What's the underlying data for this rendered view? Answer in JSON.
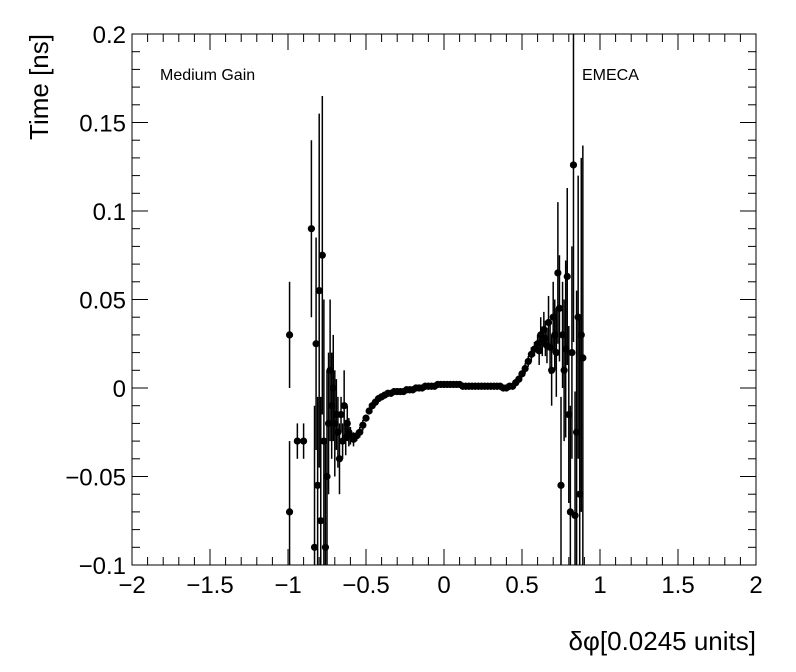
{
  "chart_data": {
    "type": "scatter",
    "xlabel": "δφ[0.0245 units]",
    "ylabel": "Time [ns]",
    "xlim": [
      -2,
      2
    ],
    "ylim": [
      -0.1,
      0.2
    ],
    "xticks": [
      -2,
      -1.5,
      -1,
      -0.5,
      0,
      0.5,
      1,
      1.5,
      2
    ],
    "xtick_labels": [
      "−2",
      "−1.5",
      "−1",
      "−0.5",
      "0",
      "0.5",
      "1",
      "1.5",
      "2"
    ],
    "yticks": [
      -0.1,
      -0.05,
      0,
      0.05,
      0.1,
      0.15,
      0.2
    ],
    "ytick_labels": [
      "−0.1",
      "−0.05",
      "0",
      "0.05",
      "0.1",
      "0.15",
      "0.2"
    ],
    "annotations": [
      "Medium Gain",
      "EMECA"
    ],
    "grid": false,
    "marker_color": "#000000",
    "series": [
      {
        "points": [
          [
            -0.99,
            0.03,
            0.03
          ],
          [
            -0.99,
            -0.07,
            0.04
          ],
          [
            -0.94,
            -0.03,
            0.01
          ],
          [
            -0.9,
            -0.03,
            0.01
          ],
          [
            -0.85,
            0.09,
            0.05
          ],
          [
            -0.83,
            -0.09,
            0.08
          ],
          [
            -0.82,
            0.025,
            0.06
          ],
          [
            -0.81,
            -0.055,
            0.05
          ],
          [
            -0.8,
            0.055,
            0.1
          ],
          [
            -0.79,
            -0.075,
            0.07
          ],
          [
            -0.78,
            0.075,
            0.09
          ],
          [
            -0.77,
            -0.03,
            0.08
          ],
          [
            -0.76,
            -0.09,
            0.06
          ],
          [
            -0.75,
            -0.05,
            0.06
          ],
          [
            -0.74,
            -0.02,
            0.04
          ],
          [
            -0.73,
            0.01,
            0.04
          ],
          [
            -0.72,
            -0.01,
            0.03
          ],
          [
            -0.71,
            0.0,
            0.03
          ],
          [
            -0.7,
            -0.02,
            0.03
          ],
          [
            -0.69,
            -0.015,
            0.02
          ],
          [
            -0.68,
            -0.025,
            0.02
          ],
          [
            -0.67,
            -0.04,
            0.02
          ],
          [
            -0.66,
            -0.015,
            0.01
          ],
          [
            -0.65,
            -0.03,
            0.01
          ],
          [
            -0.64,
            -0.01,
            0.02
          ],
          [
            -0.63,
            -0.028,
            0.01
          ],
          [
            -0.62,
            -0.02,
            0.01
          ],
          [
            -0.61,
            -0.025,
            0.008
          ],
          [
            -0.6,
            -0.027,
            0.005
          ],
          [
            -0.58,
            -0.029,
            0.004
          ],
          [
            -0.56,
            -0.027,
            0.003
          ],
          [
            -0.54,
            -0.025,
            0.003
          ],
          [
            -0.52,
            -0.021,
            0.003
          ],
          [
            -0.5,
            -0.017,
            0.002
          ],
          [
            -0.48,
            -0.013,
            0.002
          ],
          [
            -0.46,
            -0.01,
            0.002
          ],
          [
            -0.44,
            -0.008,
            0.002
          ],
          [
            -0.42,
            -0.006,
            0.002
          ],
          [
            -0.4,
            -0.005,
            0.002
          ],
          [
            -0.38,
            -0.004,
            0.002
          ],
          [
            -0.36,
            -0.003,
            0.002
          ],
          [
            -0.34,
            -0.003,
            0.002
          ],
          [
            -0.32,
            -0.002,
            0.002
          ],
          [
            -0.3,
            -0.002,
            0.002
          ],
          [
            -0.28,
            -0.002,
            0.002
          ],
          [
            -0.26,
            -0.002,
            0.002
          ],
          [
            -0.24,
            -0.001,
            0.002
          ],
          [
            -0.22,
            -0.001,
            0.002
          ],
          [
            -0.2,
            -0.001,
            0.002
          ],
          [
            -0.18,
            0.0,
            0.002
          ],
          [
            -0.16,
            0.0,
            0.002
          ],
          [
            -0.14,
            0.0,
            0.002
          ],
          [
            -0.12,
            0.001,
            0.002
          ],
          [
            -0.1,
            0.001,
            0.002
          ],
          [
            -0.08,
            0.001,
            0.002
          ],
          [
            -0.06,
            0.001,
            0.002
          ],
          [
            -0.04,
            0.002,
            0.002
          ],
          [
            -0.02,
            0.002,
            0.002
          ],
          [
            0.0,
            0.002,
            0.002
          ],
          [
            0.02,
            0.002,
            0.002
          ],
          [
            0.04,
            0.002,
            0.002
          ],
          [
            0.06,
            0.002,
            0.002
          ],
          [
            0.08,
            0.002,
            0.002
          ],
          [
            0.1,
            0.002,
            0.002
          ],
          [
            0.12,
            0.001,
            0.002
          ],
          [
            0.14,
            0.001,
            0.002
          ],
          [
            0.16,
            0.001,
            0.002
          ],
          [
            0.18,
            0.001,
            0.002
          ],
          [
            0.2,
            0.001,
            0.002
          ],
          [
            0.22,
            0.001,
            0.002
          ],
          [
            0.24,
            0.001,
            0.002
          ],
          [
            0.26,
            0.001,
            0.002
          ],
          [
            0.28,
            0.001,
            0.002
          ],
          [
            0.3,
            0.001,
            0.002
          ],
          [
            0.32,
            0.001,
            0.002
          ],
          [
            0.34,
            0.001,
            0.002
          ],
          [
            0.36,
            0.001,
            0.002
          ],
          [
            0.38,
            0.0,
            0.002
          ],
          [
            0.4,
            0.0,
            0.002
          ],
          [
            0.42,
            0.001,
            0.002
          ],
          [
            0.44,
            0.001,
            0.002
          ],
          [
            0.46,
            0.003,
            0.002
          ],
          [
            0.48,
            0.005,
            0.002
          ],
          [
            0.5,
            0.008,
            0.002
          ],
          [
            0.52,
            0.011,
            0.003
          ],
          [
            0.54,
            0.015,
            0.003
          ],
          [
            0.56,
            0.019,
            0.004
          ],
          [
            0.58,
            0.022,
            0.004
          ],
          [
            0.6,
            0.025,
            0.005
          ],
          [
            0.61,
            0.021,
            0.008
          ],
          [
            0.62,
            0.03,
            0.01
          ],
          [
            0.63,
            0.026,
            0.008
          ],
          [
            0.64,
            0.033,
            0.01
          ],
          [
            0.65,
            0.028,
            0.01
          ],
          [
            0.66,
            0.024,
            0.01
          ],
          [
            0.67,
            0.037,
            0.015
          ],
          [
            0.68,
            0.023,
            0.015
          ],
          [
            0.69,
            0.01,
            0.02
          ],
          [
            0.7,
            0.04,
            0.02
          ],
          [
            0.71,
            0.03,
            0.02
          ],
          [
            0.72,
            0.02,
            0.025
          ],
          [
            0.73,
            0.065,
            0.04
          ],
          [
            0.74,
            0.045,
            0.03
          ],
          [
            0.75,
            -0.055,
            0.05
          ],
          [
            0.76,
            0.03,
            0.03
          ],
          [
            0.77,
            0.01,
            0.04
          ],
          [
            0.78,
            0.022,
            0.05
          ],
          [
            0.79,
            0.063,
            0.05
          ],
          [
            0.8,
            -0.015,
            0.05
          ],
          [
            0.81,
            -0.07,
            0.06
          ],
          [
            0.82,
            0.02,
            0.06
          ],
          [
            0.83,
            0.126,
            0.1
          ],
          [
            0.84,
            -0.072,
            0.07
          ],
          [
            0.85,
            -0.025,
            0.08
          ],
          [
            0.86,
            0.04,
            0.08
          ],
          [
            0.87,
            -0.06,
            0.1
          ],
          [
            0.88,
            0.03,
            0.1
          ],
          [
            0.89,
            0.017,
            0.12
          ]
        ]
      }
    ]
  }
}
